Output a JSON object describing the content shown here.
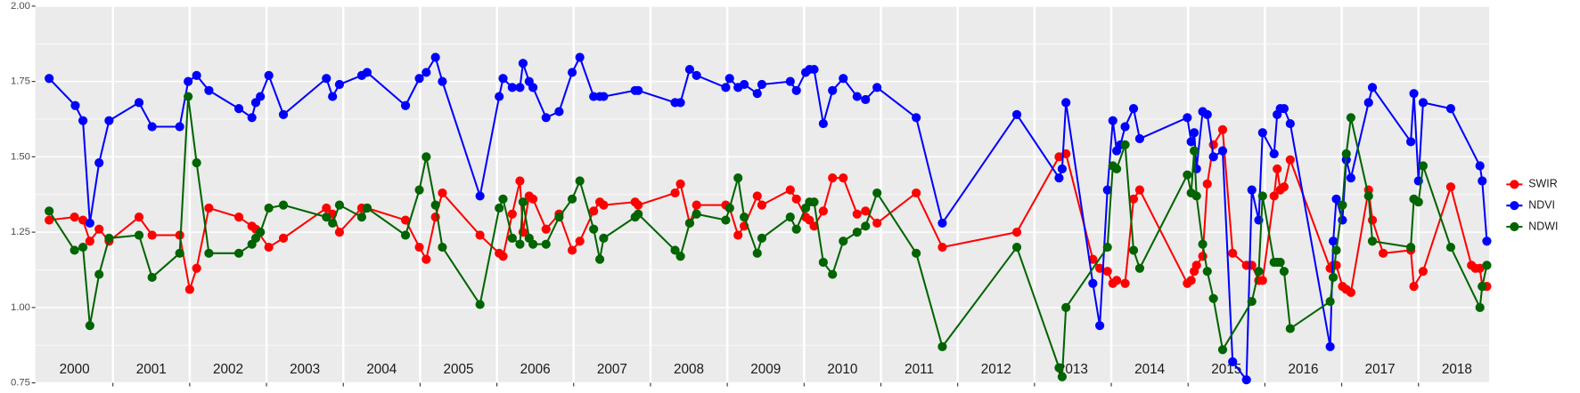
{
  "chart_data": {
    "type": "line",
    "xlim": [
      1999.99,
      2018.92
    ],
    "ylim": [
      0.75,
      2.0
    ],
    "yticks": [
      {
        "value": 0.75,
        "label": "0.75"
      },
      {
        "value": 1.0,
        "label": "1.00"
      },
      {
        "value": 1.25,
        "label": "1.25"
      },
      {
        "value": 1.5,
        "label": "1.50"
      },
      {
        "value": 1.75,
        "label": "1.75"
      },
      {
        "value": 2.0,
        "label": "2.00"
      }
    ],
    "xticks": [
      2001,
      2002,
      2003,
      2004,
      2005,
      2006,
      2007,
      2008,
      2009,
      2010,
      2011,
      2012,
      2013,
      2014,
      2015,
      2016,
      2017,
      2018
    ],
    "grid": true,
    "legend": "right",
    "annotations": [
      {
        "text": "2000",
        "x": 2000.5
      },
      {
        "text": "2001",
        "x": 2001.5
      },
      {
        "text": "2002",
        "x": 2002.5
      },
      {
        "text": "2003",
        "x": 2003.5
      },
      {
        "text": "2004",
        "x": 2004.5
      },
      {
        "text": "2005",
        "x": 2005.5
      },
      {
        "text": "2006",
        "x": 2006.5
      },
      {
        "text": "2007",
        "x": 2007.5
      },
      {
        "text": "2008",
        "x": 2008.5
      },
      {
        "text": "2009",
        "x": 2009.5
      },
      {
        "text": "2010",
        "x": 2010.5
      },
      {
        "text": "2011",
        "x": 2011.5
      },
      {
        "text": "2012",
        "x": 2012.5
      },
      {
        "text": "2013",
        "x": 2013.5
      },
      {
        "text": "2014",
        "x": 2014.5
      },
      {
        "text": "2015",
        "x": 2015.5
      },
      {
        "text": "2016",
        "x": 2016.5
      },
      {
        "text": "2017",
        "x": 2017.5
      },
      {
        "text": "2018",
        "x": 2018.5
      }
    ],
    "series": [
      {
        "name": "SWIR",
        "color": "#ff0000",
        "x": [
          2000.17,
          2000.5,
          2000.61,
          2000.7,
          2000.82,
          2000.95,
          2001.34,
          2001.51,
          2001.87,
          2002.0,
          2002.09,
          2002.25,
          2002.64,
          2002.81,
          2002.86,
          2003.03,
          2003.22,
          2003.78,
          2003.86,
          2003.95,
          2004.24,
          2004.31,
          2004.81,
          2004.99,
          2005.08,
          2005.2,
          2005.29,
          2005.78,
          2006.03,
          2006.08,
          2006.2,
          2006.3,
          2006.34,
          2006.42,
          2006.47,
          2006.64,
          2006.81,
          2006.98,
          2007.08,
          2007.26,
          2007.34,
          2007.39,
          2007.8,
          2007.84,
          2008.32,
          2008.39,
          2008.51,
          2008.6,
          2008.98,
          2009.03,
          2009.14,
          2009.22,
          2009.39,
          2009.45,
          2009.82,
          2009.9,
          2010.02,
          2010.07,
          2010.13,
          2010.25,
          2010.37,
          2010.51,
          2010.69,
          2010.8,
          2010.95,
          2011.46,
          2011.8,
          2012.77,
          2013.32,
          2013.41,
          2013.76,
          2013.85,
          2013.95,
          2014.02,
          2014.07,
          2014.18,
          2014.29,
          2014.37,
          2014.99,
          2015.04,
          2015.08,
          2015.11,
          2015.19,
          2015.25,
          2015.33,
          2015.45,
          2015.58,
          2015.76,
          2015.83,
          2015.92,
          2015.97,
          2016.12,
          2016.16,
          2016.2,
          2016.25,
          2016.33,
          2016.85,
          2016.89,
          2016.93,
          2017.01,
          2017.06,
          2017.12,
          2017.35,
          2017.4,
          2017.54,
          2017.9,
          2017.94,
          2018.06,
          2018.42,
          2018.69,
          2018.74,
          2018.8,
          2018.83,
          2018.89
        ],
        "values": [
          1.29,
          1.3,
          1.29,
          1.22,
          1.26,
          1.22,
          1.3,
          1.24,
          1.24,
          1.06,
          1.13,
          1.33,
          1.3,
          1.27,
          1.26,
          1.2,
          1.23,
          1.33,
          1.31,
          1.25,
          1.33,
          1.33,
          1.29,
          1.2,
          1.16,
          1.3,
          1.38,
          1.24,
          1.18,
          1.17,
          1.31,
          1.42,
          1.25,
          1.37,
          1.36,
          1.26,
          1.31,
          1.19,
          1.22,
          1.32,
          1.35,
          1.34,
          1.35,
          1.34,
          1.38,
          1.41,
          1.28,
          1.34,
          1.34,
          1.33,
          1.24,
          1.27,
          1.37,
          1.34,
          1.39,
          1.36,
          1.3,
          1.29,
          1.27,
          1.32,
          1.43,
          1.43,
          1.31,
          1.32,
          1.28,
          1.38,
          1.2,
          1.25,
          1.5,
          1.51,
          1.16,
          1.13,
          1.12,
          1.08,
          1.09,
          1.08,
          1.36,
          1.39,
          1.08,
          1.09,
          1.12,
          1.14,
          1.17,
          1.41,
          1.54,
          1.59,
          1.18,
          1.14,
          1.14,
          1.09,
          1.09,
          1.37,
          1.46,
          1.39,
          1.4,
          1.49,
          1.13,
          1.14,
          1.14,
          1.07,
          1.06,
          1.05,
          1.39,
          1.29,
          1.18,
          1.19,
          1.07,
          1.12,
          1.4,
          1.14,
          1.13,
          1.13,
          1.07,
          1.07
        ]
      },
      {
        "name": "NDVI",
        "color": "#0000ff",
        "x": [
          2000.17,
          2000.51,
          2000.61,
          2000.7,
          2000.82,
          2000.95,
          2001.34,
          2001.51,
          2001.87,
          2001.98,
          2002.09,
          2002.25,
          2002.64,
          2002.81,
          2002.86,
          2002.92,
          2003.03,
          2003.22,
          2003.78,
          2003.86,
          2003.95,
          2004.24,
          2004.31,
          2004.81,
          2004.99,
          2005.08,
          2005.2,
          2005.29,
          2005.78,
          2006.03,
          2006.08,
          2006.2,
          2006.3,
          2006.34,
          2006.42,
          2006.47,
          2006.64,
          2006.81,
          2006.98,
          2007.08,
          2007.26,
          2007.34,
          2007.39,
          2007.8,
          2007.84,
          2008.32,
          2008.39,
          2008.51,
          2008.6,
          2008.98,
          2009.03,
          2009.14,
          2009.22,
          2009.39,
          2009.45,
          2009.82,
          2009.9,
          2010.02,
          2010.07,
          2010.13,
          2010.25,
          2010.37,
          2010.51,
          2010.69,
          2010.8,
          2010.95,
          2011.46,
          2011.8,
          2012.77,
          2013.32,
          2013.36,
          2013.41,
          2013.76,
          2013.85,
          2013.95,
          2014.02,
          2014.07,
          2014.12,
          2014.18,
          2014.29,
          2014.37,
          2014.99,
          2015.04,
          2015.08,
          2015.11,
          2015.19,
          2015.25,
          2015.33,
          2015.45,
          2015.58,
          2015.76,
          2015.83,
          2015.92,
          2015.97,
          2016.12,
          2016.16,
          2016.2,
          2016.25,
          2016.33,
          2016.85,
          2016.89,
          2016.93,
          2017.01,
          2017.06,
          2017.12,
          2017.35,
          2017.4,
          2017.9,
          2017.94,
          2018.0,
          2018.06,
          2018.42,
          2018.8,
          2018.83,
          2018.89
        ],
        "values": [
          1.76,
          1.67,
          1.62,
          1.28,
          1.48,
          1.62,
          1.68,
          1.6,
          1.6,
          1.75,
          1.77,
          1.72,
          1.66,
          1.63,
          1.68,
          1.7,
          1.77,
          1.64,
          1.76,
          1.7,
          1.74,
          1.77,
          1.78,
          1.67,
          1.76,
          1.78,
          1.83,
          1.75,
          1.37,
          1.7,
          1.76,
          1.73,
          1.73,
          1.81,
          1.75,
          1.73,
          1.63,
          1.65,
          1.78,
          1.83,
          1.7,
          1.7,
          1.7,
          1.72,
          1.72,
          1.68,
          1.68,
          1.79,
          1.77,
          1.73,
          1.76,
          1.73,
          1.74,
          1.71,
          1.74,
          1.75,
          1.72,
          1.78,
          1.79,
          1.79,
          1.61,
          1.72,
          1.76,
          1.7,
          1.69,
          1.73,
          1.63,
          1.28,
          1.64,
          1.43,
          1.46,
          1.68,
          1.08,
          0.94,
          1.39,
          1.62,
          1.52,
          1.54,
          1.6,
          1.66,
          1.56,
          1.63,
          1.55,
          1.58,
          1.46,
          1.65,
          1.64,
          1.5,
          1.52,
          0.82,
          0.76,
          1.39,
          1.29,
          1.58,
          1.51,
          1.64,
          1.66,
          1.66,
          1.61,
          0.87,
          1.22,
          1.36,
          1.29,
          1.49,
          1.43,
          1.68,
          1.73,
          1.55,
          1.71,
          1.42,
          1.68,
          1.66,
          1.47,
          1.42,
          1.22
        ]
      },
      {
        "name": "NDWI",
        "color": "#006400",
        "x": [
          2000.17,
          2000.5,
          2000.61,
          2000.7,
          2000.82,
          2000.95,
          2001.34,
          2001.51,
          2001.87,
          2001.98,
          2002.09,
          2002.25,
          2002.64,
          2002.81,
          2002.86,
          2002.92,
          2003.03,
          2003.22,
          2003.78,
          2003.86,
          2003.95,
          2004.24,
          2004.31,
          2004.81,
          2004.99,
          2005.08,
          2005.2,
          2005.29,
          2005.78,
          2006.03,
          2006.08,
          2006.2,
          2006.3,
          2006.34,
          2006.42,
          2006.47,
          2006.64,
          2006.81,
          2006.98,
          2007.08,
          2007.26,
          2007.34,
          2007.39,
          2007.8,
          2007.84,
          2008.32,
          2008.39,
          2008.51,
          2008.6,
          2008.98,
          2009.03,
          2009.14,
          2009.22,
          2009.39,
          2009.45,
          2009.82,
          2009.9,
          2010.02,
          2010.07,
          2010.13,
          2010.25,
          2010.37,
          2010.51,
          2010.69,
          2010.8,
          2010.95,
          2011.46,
          2011.8,
          2012.77,
          2013.32,
          2013.36,
          2013.41,
          2013.95,
          2014.02,
          2014.07,
          2014.18,
          2014.29,
          2014.37,
          2014.99,
          2015.04,
          2015.08,
          2015.11,
          2015.19,
          2015.25,
          2015.33,
          2015.45,
          2015.83,
          2015.92,
          2015.97,
          2016.12,
          2016.16,
          2016.2,
          2016.25,
          2016.33,
          2016.85,
          2016.89,
          2016.93,
          2017.01,
          2017.06,
          2017.12,
          2017.35,
          2017.4,
          2017.9,
          2017.94,
          2018.0,
          2018.06,
          2018.42,
          2018.8,
          2018.83,
          2018.89
        ],
        "values": [
          1.32,
          1.19,
          1.2,
          0.94,
          1.11,
          1.23,
          1.24,
          1.1,
          1.18,
          1.7,
          1.48,
          1.18,
          1.18,
          1.21,
          1.23,
          1.25,
          1.33,
          1.34,
          1.3,
          1.28,
          1.34,
          1.3,
          1.33,
          1.24,
          1.39,
          1.5,
          1.34,
          1.2,
          1.01,
          1.33,
          1.36,
          1.23,
          1.21,
          1.35,
          1.23,
          1.21,
          1.21,
          1.3,
          1.36,
          1.42,
          1.26,
          1.16,
          1.23,
          1.3,
          1.31,
          1.19,
          1.17,
          1.28,
          1.31,
          1.29,
          1.33,
          1.43,
          1.3,
          1.18,
          1.23,
          1.3,
          1.26,
          1.33,
          1.35,
          1.35,
          1.15,
          1.11,
          1.22,
          1.25,
          1.27,
          1.38,
          1.18,
          0.87,
          1.2,
          0.8,
          0.77,
          1.0,
          1.2,
          1.47,
          1.46,
          1.54,
          1.19,
          1.13,
          1.44,
          1.38,
          1.52,
          1.37,
          1.21,
          1.12,
          1.03,
          0.86,
          1.02,
          1.12,
          1.37,
          1.15,
          1.15,
          1.15,
          1.12,
          0.93,
          1.02,
          1.1,
          1.19,
          1.34,
          1.51,
          1.63,
          1.37,
          1.22,
          1.2,
          1.36,
          1.35,
          1.47,
          1.2,
          1.0,
          1.07,
          1.14
        ]
      }
    ]
  }
}
